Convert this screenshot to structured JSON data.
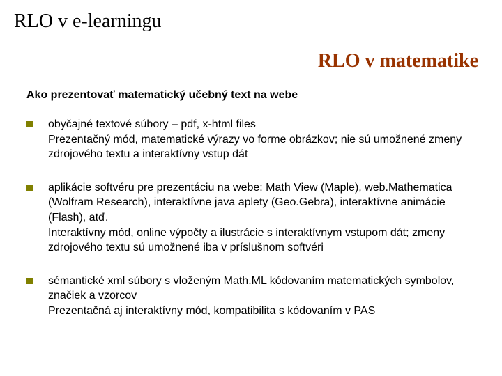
{
  "slide": {
    "header_title": "RLO v e-learningu",
    "subtitle": "RLO v matematike",
    "intro": "Ako prezentovať matematický učebný text na webe",
    "bullets": [
      "obyčajné textové súbory – pdf, x-html files\nPrezentačný mód, matematické výrazy vo forme obrázkov; nie sú umožnené zmeny zdrojového textu a interaktívny vstup dát",
      "aplikácie softvéru pre prezentáciu na webe: Math View (Maple), web.Mathematica (Wolfram Research), interaktívne java aplety (Geo.Gebra), interaktívne animácie (Flash), atď.\nInteraktívny mód, online výpočty a ilustrácie s interaktívnym vstupom dát; zmeny zdrojového textu sú umožnené iba v príslušnom softvéri",
      "sémantické xml súbory s vloženým Math.ML kódovaním matematických symbolov, značiek a vzorcov\nPrezentačná aj interaktívny mód, kompatibilita s kódovaním v PAS"
    ]
  },
  "style": {
    "header_title_color": "#000000",
    "header_title_fontsize": 28,
    "header_title_fontfamily": "Times New Roman",
    "header_rule_color": "#333333",
    "subtitle_color": "#993300",
    "subtitle_fontsize": 28,
    "subtitle_fontweight": "bold",
    "subtitle_fontfamily": "Times New Roman",
    "intro_fontsize": 16,
    "intro_fontweight": "bold",
    "intro_color": "#000000",
    "bullet_marker_color": "#808000",
    "bullet_marker_size": 9,
    "bullet_text_fontsize": 16,
    "bullet_text_color": "#000000",
    "bullet_text_lineheight": 1.35,
    "background_color": "#ffffff",
    "slide_width": 720,
    "slide_height": 540
  }
}
